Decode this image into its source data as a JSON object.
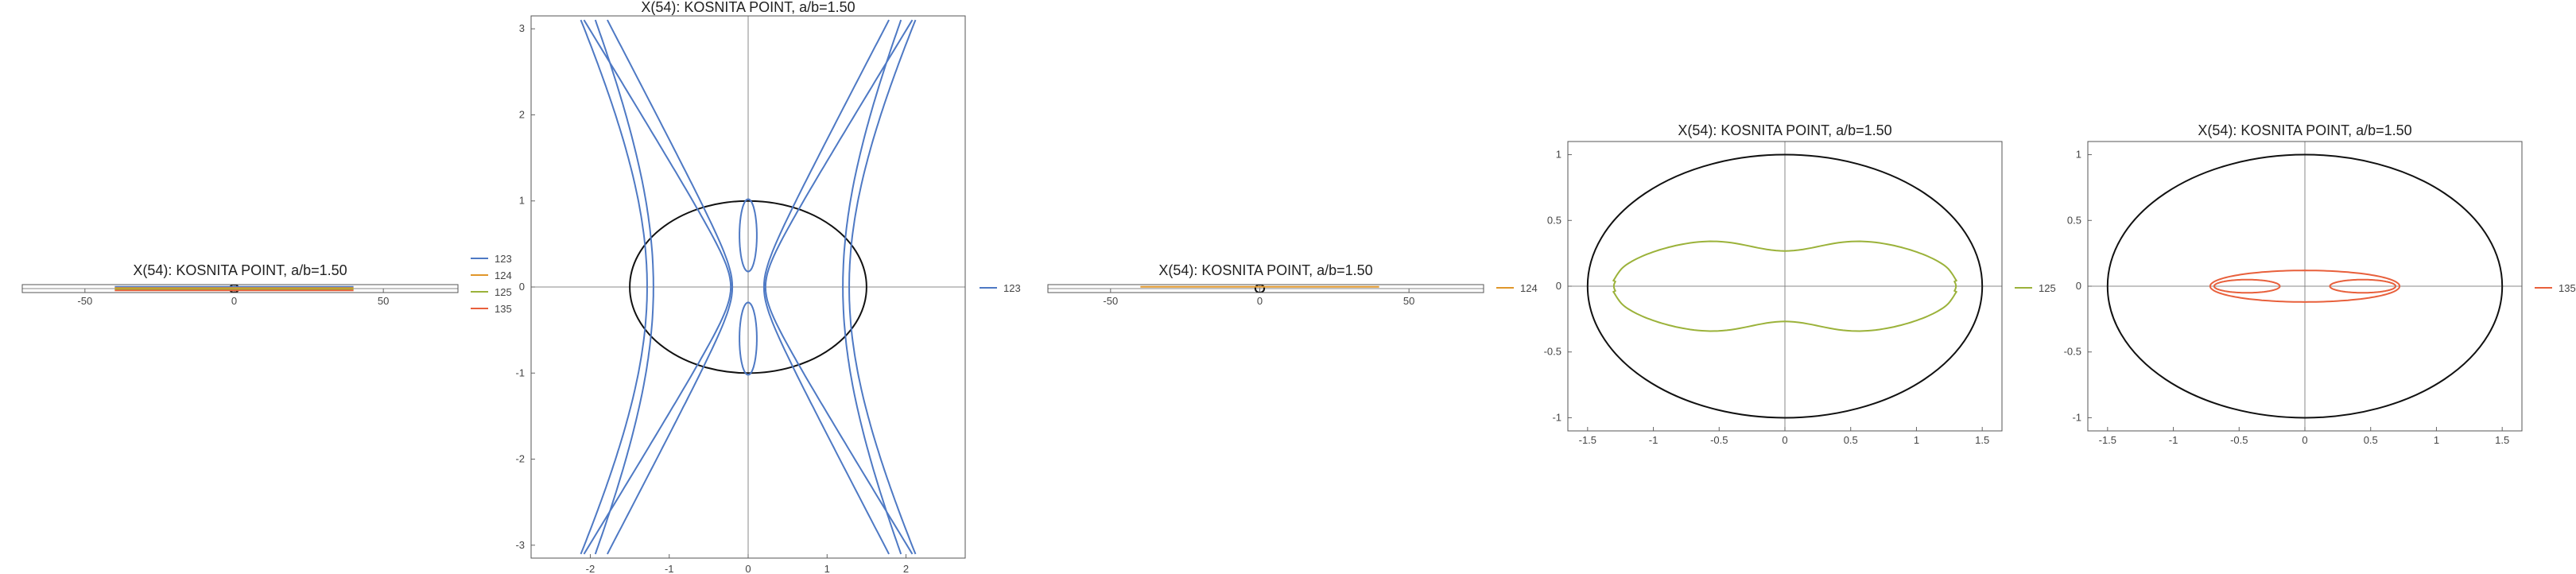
{
  "chart_data": [
    {
      "type": "line",
      "title": "X(54): KOSNITA POINT, a/b=1.50",
      "xlim": [
        -71,
        75
      ],
      "ylim": [
        -1,
        1
      ],
      "xticks": [
        -50,
        0,
        50
      ],
      "yticks": [],
      "legend_position": "right",
      "legend": [
        "123",
        "124",
        "125",
        "135"
      ],
      "ellipse": {
        "a": 1.5,
        "b": 1.0
      },
      "series": [
        {
          "name": "123",
          "color": "#4e79c4"
        },
        {
          "name": "124",
          "color": "#e0962a"
        },
        {
          "name": "125",
          "color": "#9bb23a"
        },
        {
          "name": "135",
          "color": "#e8603c"
        }
      ]
    },
    {
      "type": "line",
      "title": "X(54): KOSNITA POINT, a/b=1.50",
      "xlim": [
        -2.75,
        2.75
      ],
      "ylim": [
        -3.15,
        3.15
      ],
      "xticks": [
        -2,
        -1,
        0,
        1,
        2
      ],
      "yticks": [
        -3,
        -2,
        -1,
        0,
        1,
        2,
        3
      ],
      "legend_position": "right",
      "legend": [
        "123"
      ],
      "ellipse": {
        "a": 1.5,
        "b": 1.0
      },
      "series": [
        {
          "name": "123",
          "color": "#4e79c4",
          "curves": [
            {
              "shape": "hyperbola",
              "cx": 0,
              "a": 1.2,
              "b": 2.45
            },
            {
              "shape": "hyperbola",
              "cx": 0,
              "a": 1.28,
              "b": 2.35
            },
            {
              "shape": "hyperbola",
              "cx": 0,
              "a": 0.2,
              "b": 0.35
            },
            {
              "shape": "hyperbola",
              "cx": 0,
              "a": 0.22,
              "b": 0.33
            },
            {
              "shape": "oval",
              "cx": 0,
              "cy": 0.6,
              "rx": 0.11,
              "ry": 0.42
            },
            {
              "shape": "oval",
              "cx": 0,
              "cy": -0.6,
              "rx": 0.11,
              "ry": 0.42
            }
          ]
        }
      ]
    },
    {
      "type": "line",
      "title": "X(54): KOSNITA POINT, a/b=1.50",
      "xlim": [
        -71,
        75
      ],
      "ylim": [
        -1,
        1
      ],
      "xticks": [
        -50,
        0,
        50
      ],
      "yticks": [],
      "legend_position": "right",
      "legend": [
        "124"
      ],
      "ellipse": {
        "a": 1.5,
        "b": 1.0
      },
      "series": [
        {
          "name": "124",
          "color": "#e0962a"
        }
      ]
    },
    {
      "type": "line",
      "title": "X(54): KOSNITA POINT, a/b=1.50",
      "xlim": [
        -1.65,
        1.65
      ],
      "ylim": [
        -1.1,
        1.1
      ],
      "xticks": [
        -1.5,
        -1.0,
        -0.5,
        0.0,
        0.5,
        1.0,
        1.5
      ],
      "yticks": [
        -1.0,
        -0.5,
        0.0,
        0.5,
        1.0
      ],
      "legend_position": "right",
      "legend": [
        "125"
      ],
      "ellipse": {
        "a": 1.5,
        "b": 1.0
      },
      "series": [
        {
          "name": "125",
          "color": "#9bb23a",
          "curves": [
            {
              "shape": "peanut",
              "a": 1.32,
              "b": 0.4,
              "waist": 0.33
            }
          ]
        }
      ]
    },
    {
      "type": "line",
      "title": "X(54): KOSNITA POINT, a/b=1.50",
      "xlim": [
        -1.65,
        1.65
      ],
      "ylim": [
        -1.1,
        1.1
      ],
      "xticks": [
        -1.5,
        -1.0,
        -0.5,
        0.0,
        0.5,
        1.0,
        1.5
      ],
      "yticks": [
        -1.0,
        -0.5,
        0.0,
        0.5,
        1.0
      ],
      "legend_position": "right",
      "legend": [
        "135"
      ],
      "ellipse": {
        "a": 1.5,
        "b": 1.0
      },
      "series": [
        {
          "name": "135",
          "color": "#e8603c",
          "curves": [
            {
              "shape": "oval",
              "cx": 0,
              "cy": 0,
              "rx": 0.72,
              "ry": 0.12
            },
            {
              "shape": "oval",
              "cx": -0.44,
              "cy": 0,
              "rx": 0.25,
              "ry": 0.05
            },
            {
              "shape": "oval",
              "cx": 0.44,
              "cy": 0,
              "rx": 0.25,
              "ry": 0.05
            }
          ]
        }
      ]
    }
  ]
}
